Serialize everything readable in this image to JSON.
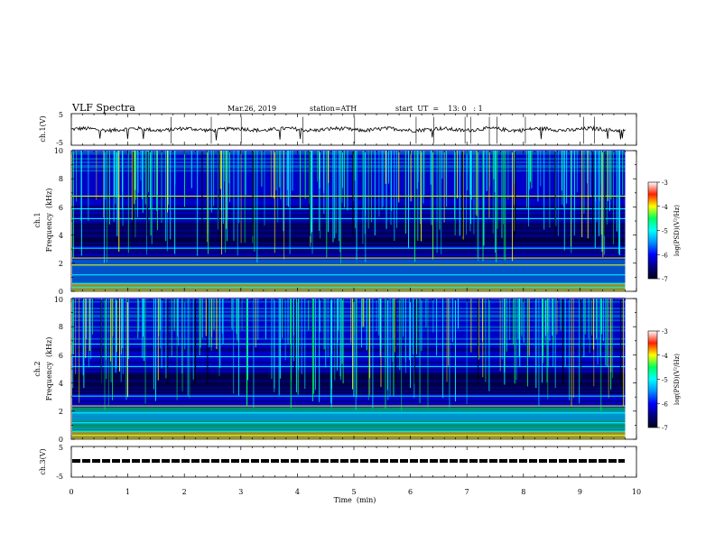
{
  "header": {
    "title": "VLF  Spectra",
    "date": "Mar.26, 2019",
    "station": "station=ATH",
    "start_ut": "start  UT  =    13: 0   : 1"
  },
  "colors": {
    "waveform": "#000000",
    "colormap": [
      "#00001a",
      "#000080",
      "#0000ff",
      "#0090ff",
      "#00ffff",
      "#00ff60",
      "#ffff00",
      "#ff2000",
      "#ffffff"
    ]
  },
  "chart_data": [
    {
      "type": "line",
      "panel": "ch1-waveform",
      "ylabel": "ch.1(V)",
      "ylim": [
        -5,
        5
      ],
      "yticks": [
        "5",
        "-5"
      ],
      "xlim": [
        0,
        10
      ],
      "grid": false,
      "series": [
        {
          "mean": 0,
          "range": [
            -1.5,
            1.5
          ]
        }
      ]
    },
    {
      "type": "heatmap",
      "panel": "ch1-spectrogram",
      "ylabel": [
        "ch.1",
        "Frequency  (kHz)"
      ],
      "ylim": [
        0,
        10
      ],
      "yticks": [
        "0",
        "2",
        "4",
        "6",
        "8",
        "10"
      ],
      "xlim": [
        0,
        9.8
      ],
      "colorbar": {
        "label": "log(PSD)(V²/Hz)",
        "ticks": [
          "-3",
          "-4",
          "-5",
          "-6",
          "-7"
        ],
        "range": [
          -7,
          -3
        ]
      }
    },
    {
      "type": "heatmap",
      "panel": "ch2-spectrogram",
      "ylabel": [
        "ch.2",
        "Frequency  (kHz)"
      ],
      "ylim": [
        0,
        10
      ],
      "yticks": [
        "0",
        "2",
        "4",
        "6",
        "8",
        "10"
      ],
      "xlim": [
        0,
        9.8
      ],
      "colorbar": {
        "label": "log(PSD)(V²/Hz)",
        "ticks": [
          "-3",
          "-4",
          "-5",
          "-6",
          "-7"
        ],
        "range": [
          -7,
          -3
        ]
      }
    },
    {
      "type": "line",
      "panel": "ch3-waveform",
      "ylabel": "ch.3(V)",
      "ylim": [
        -5,
        5
      ],
      "yticks": [
        "5",
        "-5"
      ],
      "xlim": [
        0,
        10
      ],
      "series": [
        {
          "level": 0,
          "style": "dashed"
        }
      ]
    }
  ],
  "xaxis": {
    "label": "Time  (min)",
    "ticks": [
      "0",
      "1",
      "2",
      "3",
      "4",
      "5",
      "6",
      "7",
      "8",
      "9",
      "10"
    ]
  }
}
